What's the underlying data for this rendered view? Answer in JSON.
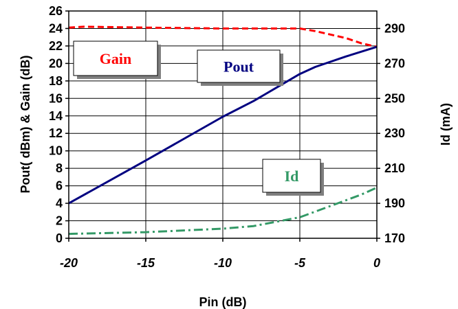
{
  "chart_data": {
    "type": "line",
    "xlabel": "Pin (dB)",
    "ylabel": "Pout( dBm) & Gain (dB)",
    "y2label": "Id (mA)",
    "xlim": [
      -20,
      0
    ],
    "ylim": [
      0,
      26
    ],
    "y2lim": [
      170,
      300
    ],
    "x_ticks": [
      "-20",
      "-15",
      "-10",
      "-5",
      "0"
    ],
    "y_ticks": [
      "0",
      "2",
      "4",
      "6",
      "8",
      "10",
      "12",
      "14",
      "16",
      "18",
      "20",
      "22",
      "24",
      "26"
    ],
    "y2_ticks": [
      "170",
      "190",
      "210",
      "230",
      "250",
      "270",
      "290"
    ],
    "grid": true,
    "series": [
      {
        "name": "Gain",
        "axis": "left",
        "color": "#ff0000",
        "style": "dashed",
        "x": [
          -20,
          -19,
          -15,
          -10,
          -5,
          -4,
          -2,
          -1,
          0
        ],
        "y": [
          24.1,
          24.2,
          24.1,
          24.0,
          24.0,
          23.7,
          22.9,
          22.3,
          21.9
        ]
      },
      {
        "name": "Pout",
        "axis": "left",
        "color": "#000080",
        "style": "solid",
        "x": [
          -20,
          -15,
          -10,
          -8,
          -5,
          -4,
          -2,
          0
        ],
        "y": [
          4.0,
          8.9,
          13.9,
          15.7,
          18.8,
          19.6,
          20.8,
          21.9
        ]
      },
      {
        "name": "Id",
        "axis": "right",
        "color": "#339966",
        "style": "dash-dot",
        "x": [
          -20,
          -15,
          -10,
          -8,
          -5,
          -3,
          -1,
          0
        ],
        "y": [
          172.5,
          173.5,
          175.5,
          177.0,
          182.0,
          188.5,
          195.0,
          199.0
        ]
      }
    ],
    "labels": [
      {
        "text": "Gain",
        "color": "#ff0000"
      },
      {
        "text": "Pout",
        "color": "#000080"
      },
      {
        "text": "Id",
        "color": "#339966"
      }
    ]
  }
}
